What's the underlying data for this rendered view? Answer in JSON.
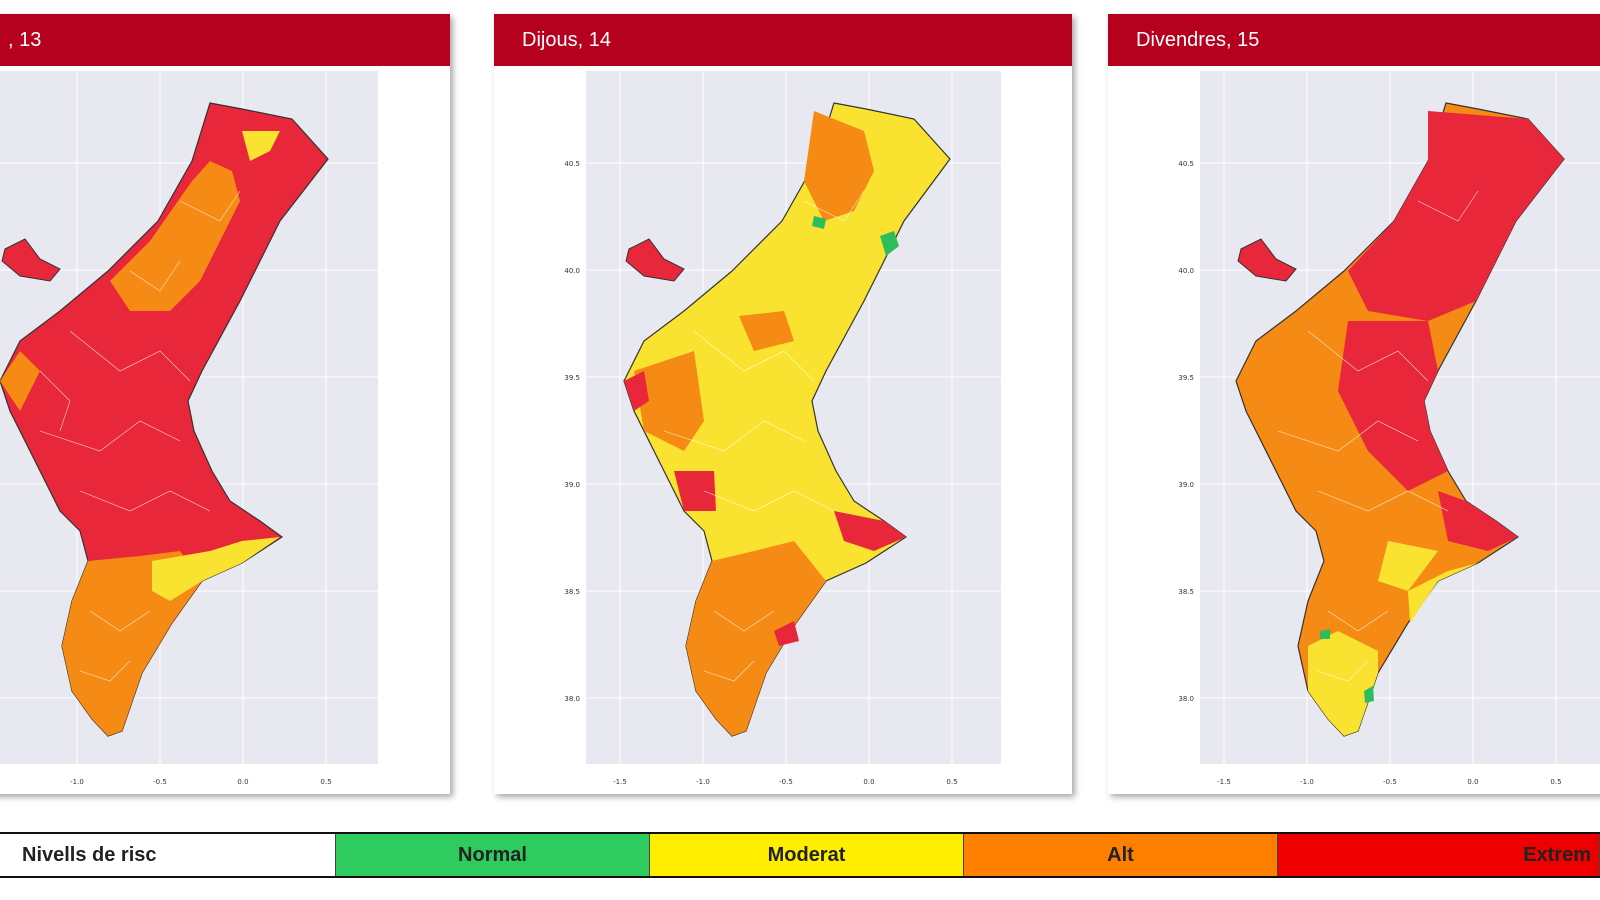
{
  "panels": [
    {
      "title": ", 13"
    },
    {
      "title": "Dijous, 14"
    },
    {
      "title": "Divendres, 15"
    }
  ],
  "map_axes": {
    "x_ticks": [
      "-1.5",
      "-1.0",
      "-0.5",
      "0.0",
      "0.5"
    ],
    "y_ticks": [
      "40.5",
      "40.0",
      "39.5",
      "39.0",
      "38.5",
      "38.0"
    ]
  },
  "legend": {
    "title": "Nivells de risc",
    "levels": [
      {
        "label": "Normal",
        "color": "#2ecc5e"
      },
      {
        "label": "Moderat",
        "color": "#ffee00"
      },
      {
        "label": "Alt",
        "color": "#ff7f00"
      },
      {
        "label": "Extrem",
        "color": "#ee0000"
      }
    ]
  },
  "colors": {
    "header": "#b5001e",
    "map_background": "#e8e8f0",
    "risk_extrem_map": "#e8273a",
    "risk_alt_map": "#f58a14",
    "risk_moderat_map": "#f9e330",
    "risk_normal_map": "#2ebd5c"
  }
}
